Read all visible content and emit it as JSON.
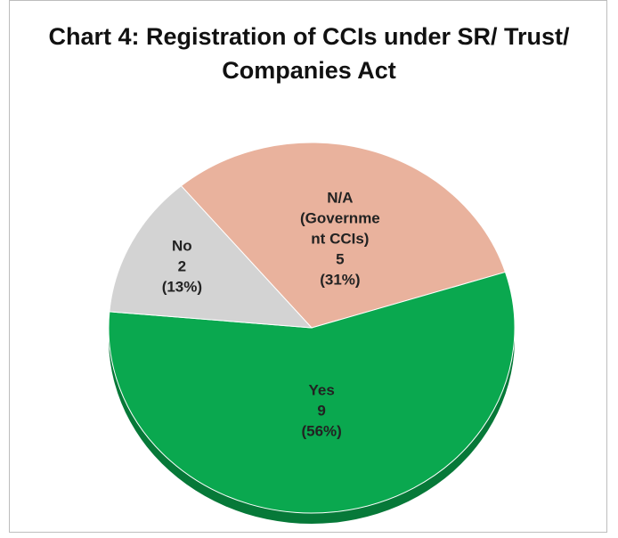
{
  "chart_data": {
    "type": "pie",
    "title": "Chart 4: Registration of CCIs under SR/ Trust/ Companies Act",
    "categories": [
      "N/A (Government CCIs)",
      "Yes",
      "No"
    ],
    "values": [
      5,
      9,
      2
    ],
    "percents": [
      31,
      56,
      13
    ],
    "percent_labels": [
      "(31%)",
      "(56%)",
      "(13%)"
    ],
    "colors": [
      "#e9b29d",
      "#0aa84f",
      "#d3d3d3"
    ]
  }
}
